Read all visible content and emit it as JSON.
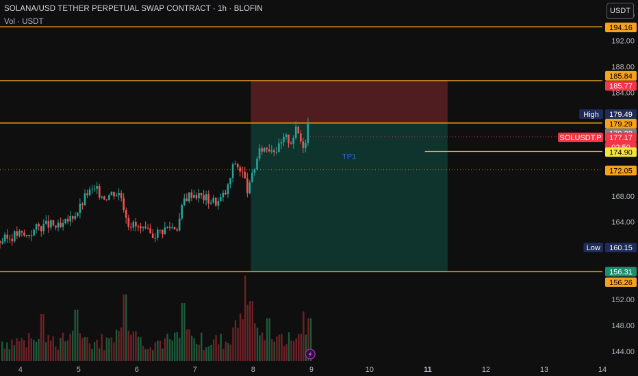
{
  "header": {
    "title": "SOLANA/USD TETHER PERPETUAL SWAP CONTRACT · 1h · BLOFIN",
    "volume_label": "Vol · USDT"
  },
  "toolbar": {
    "currency_button": "USDT"
  },
  "colors": {
    "background": "#0f0f0f",
    "up": "#26a69a",
    "down": "#ef5350",
    "level_line": "#f7a21b",
    "tp_line": "#e3c12b",
    "stop_zone": "#5a1f22",
    "target_zone": "#0f3a32",
    "current_price": "#f23645",
    "high_tag": "#1e2c5a"
  },
  "chart_data": {
    "type": "candlestick",
    "price_axis": {
      "ticks": [
        "196.00",
        "192.00",
        "188.00",
        "184.00",
        "180.00",
        "176.00",
        "172.00",
        "168.00",
        "164.00",
        "160.00",
        "156.00",
        "152.00",
        "148.00",
        "144.00"
      ],
      "range": [
        142.3,
        198.3
      ]
    },
    "time_axis": {
      "ticks": [
        {
          "label": "4",
          "day": 4
        },
        {
          "label": "5",
          "day": 5
        },
        {
          "label": "6",
          "day": 6
        },
        {
          "label": "7",
          "day": 7
        },
        {
          "label": "8",
          "day": 8
        },
        {
          "label": "9",
          "day": 9
        },
        {
          "label": "10",
          "day": 10
        },
        {
          "label": "11",
          "day": 11,
          "bold": true
        },
        {
          "label": "12",
          "day": 12
        },
        {
          "label": "13",
          "day": 13
        },
        {
          "label": "14",
          "day": 14
        }
      ],
      "range_days": [
        3.65,
        14.0
      ]
    },
    "price_tags": [
      {
        "label": "194.16",
        "value": 194.16,
        "style": "orange"
      },
      {
        "label": "185.84",
        "value": 185.84,
        "style": "orange"
      },
      {
        "label": "185.77",
        "value": 185.77,
        "style": "red"
      },
      {
        "label": "High",
        "value": 179.49,
        "style": "dark",
        "side": "left"
      },
      {
        "label": "179.49",
        "value": 179.49,
        "style": "dark"
      },
      {
        "label": "179.29",
        "value": 179.29,
        "style": "orange",
        "row": 1
      },
      {
        "label": "179.29",
        "value": 179.29,
        "style": "gray",
        "row": 2
      },
      {
        "label": "SOLUSDT.P",
        "value": 177.17,
        "style": "red",
        "side": "left"
      },
      {
        "label": "177.17",
        "value": 177.17,
        "style": "red"
      },
      {
        "label": "02:50",
        "value": 177.17,
        "style": "red",
        "row": 2
      },
      {
        "label": "174.90",
        "value": 174.9,
        "style": "yellow"
      },
      {
        "label": "172.05",
        "value": 172.05,
        "style": "orange"
      },
      {
        "label": "Low",
        "value": 160.15,
        "style": "dark",
        "side": "left"
      },
      {
        "label": "160.15",
        "value": 160.15,
        "style": "dark"
      },
      {
        "label": "156.31",
        "value": 156.31,
        "style": "green"
      },
      {
        "label": "156.26",
        "value": 156.26,
        "style": "orange",
        "row": 2
      }
    ],
    "levels": [
      {
        "value": 194.16,
        "style": "solid"
      },
      {
        "value": 185.84,
        "style": "solid"
      },
      {
        "value": 179.29,
        "style": "solid"
      },
      {
        "value": 156.31,
        "style": "solid"
      },
      {
        "value": 172.05,
        "style": "dotted"
      }
    ],
    "current_price": 177.17,
    "position": {
      "type": "short",
      "entry": 179.29,
      "stop": 185.84,
      "target": 156.26,
      "start_day": 7.96,
      "end_day": 11.34
    },
    "tp_line": {
      "label": "TP1",
      "value": 174.9,
      "start_day": 10.95,
      "end_day": 11.34
    },
    "candle_keypoints": [
      {
        "day": 3.65,
        "close": 161.0
      },
      {
        "day": 3.82,
        "close": 161.6
      },
      {
        "day": 3.95,
        "close": 162.2
      },
      {
        "day": 4.1,
        "close": 161.8
      },
      {
        "day": 4.3,
        "close": 163.2
      },
      {
        "day": 4.5,
        "close": 163.6
      },
      {
        "day": 4.7,
        "close": 163.0
      },
      {
        "day": 4.9,
        "close": 165.0
      },
      {
        "day": 5.0,
        "close": 165.8
      },
      {
        "day": 5.15,
        "close": 168.5
      },
      {
        "day": 5.3,
        "close": 168.9
      },
      {
        "day": 5.45,
        "close": 167.9
      },
      {
        "day": 5.6,
        "close": 168.6
      },
      {
        "day": 5.72,
        "close": 168.4
      },
      {
        "day": 5.85,
        "close": 164.0
      },
      {
        "day": 6.0,
        "close": 163.2
      },
      {
        "day": 6.1,
        "close": 162.6
      },
      {
        "day": 6.25,
        "close": 162.0
      },
      {
        "day": 6.4,
        "close": 162.6
      },
      {
        "day": 6.55,
        "close": 163.3
      },
      {
        "day": 6.7,
        "close": 163.3
      },
      {
        "day": 6.82,
        "close": 167.6
      },
      {
        "day": 6.95,
        "close": 168.5
      },
      {
        "day": 7.1,
        "close": 168.0
      },
      {
        "day": 7.25,
        "close": 167.4
      },
      {
        "day": 7.4,
        "close": 167.1
      },
      {
        "day": 7.55,
        "close": 168.8
      },
      {
        "day": 7.68,
        "close": 173.4
      },
      {
        "day": 7.82,
        "close": 171.4
      },
      {
        "day": 7.92,
        "close": 168.6
      },
      {
        "day": 8.05,
        "close": 173.5
      },
      {
        "day": 8.15,
        "close": 175.4
      },
      {
        "day": 8.3,
        "close": 175.6
      },
      {
        "day": 8.42,
        "close": 175.2
      },
      {
        "day": 8.55,
        "close": 177.0
      },
      {
        "day": 8.65,
        "close": 176.6
      },
      {
        "day": 8.75,
        "close": 178.4
      },
      {
        "day": 8.82,
        "close": 176.5
      },
      {
        "day": 8.88,
        "close": 175.8
      },
      {
        "day": 8.94,
        "close": 179.3
      },
      {
        "day": 8.98,
        "close": 177.2
      }
    ],
    "volume_peaks": [
      {
        "day": 4.35,
        "height": 0.55
      },
      {
        "day": 4.95,
        "height": 0.6
      },
      {
        "day": 5.8,
        "height": 0.78
      },
      {
        "day": 6.8,
        "height": 0.68
      },
      {
        "day": 7.85,
        "height": 1.0
      },
      {
        "day": 7.94,
        "height": 0.7
      },
      {
        "day": 8.25,
        "height": 0.5
      },
      {
        "day": 8.85,
        "height": 0.58
      },
      {
        "day": 8.95,
        "height": 0.5
      }
    ]
  }
}
